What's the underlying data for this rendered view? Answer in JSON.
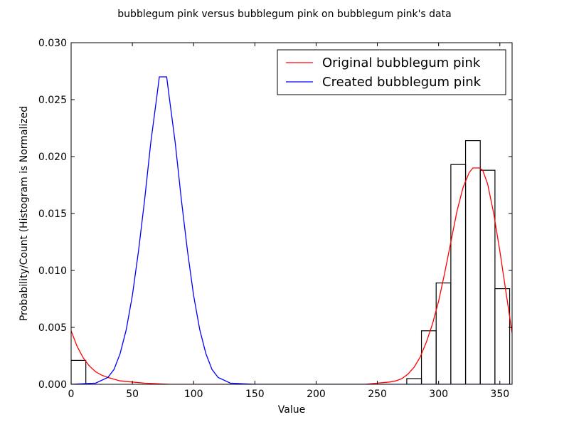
{
  "chart_data": {
    "type": "histogram+line",
    "title": "bubblegum pink versus bubblegum pink on bubblegum pink's data",
    "xlabel": "Value",
    "ylabel": "Probability/Count (Histogram is Normalized",
    "xlim": [
      0,
      360
    ],
    "ylim": [
      0,
      0.03
    ],
    "x_ticks": [
      0,
      50,
      100,
      150,
      200,
      250,
      300,
      350
    ],
    "x_tick_labels": [
      "0",
      "50",
      "100",
      "150",
      "200",
      "250",
      "300",
      "350"
    ],
    "y_ticks": [
      0,
      0.005,
      0.01,
      0.015,
      0.02,
      0.025,
      0.03
    ],
    "y_tick_labels": [
      "0.000",
      "0.005",
      "0.010",
      "0.015",
      "0.020",
      "0.025",
      "0.030"
    ],
    "grid": false,
    "legend_position": "top-right",
    "histogram": {
      "edge_color": "#000000",
      "fill": "none",
      "bins": [
        {
          "x0": 0,
          "x1": 12,
          "value": 0.0021
        },
        {
          "x0": 274,
          "x1": 286,
          "value": 0.0005
        },
        {
          "x0": 286,
          "x1": 298,
          "value": 0.0047
        },
        {
          "x0": 298,
          "x1": 310,
          "value": 0.0089
        },
        {
          "x0": 310,
          "x1": 322,
          "value": 0.0193
        },
        {
          "x0": 322,
          "x1": 334,
          "value": 0.0214
        },
        {
          "x0": 334,
          "x1": 346,
          "value": 0.0188
        },
        {
          "x0": 346,
          "x1": 358,
          "value": 0.0084
        }
      ]
    },
    "series": [
      {
        "name": "Original bubblegum pink",
        "color": "#ff0000",
        "x": [
          0,
          5,
          10,
          15,
          20,
          25,
          30,
          40,
          50,
          60,
          80,
          100,
          150,
          200,
          240,
          250,
          260,
          265,
          270,
          275,
          280,
          285,
          290,
          295,
          300,
          305,
          310,
          315,
          320,
          325,
          328,
          330,
          333,
          336,
          340,
          345,
          350,
          355,
          360
        ],
        "y": [
          0.0047,
          0.0033,
          0.0023,
          0.0016,
          0.0011,
          0.0008,
          0.0006,
          0.0003,
          0.0002,
          0.0001,
          0.0,
          0.0,
          0.0,
          0.0,
          0.0,
          0.0001,
          0.0002,
          0.0003,
          0.0005,
          0.0009,
          0.0015,
          0.0024,
          0.0037,
          0.0053,
          0.0073,
          0.0098,
          0.0125,
          0.0152,
          0.0173,
          0.0186,
          0.019,
          0.019,
          0.019,
          0.0188,
          0.0176,
          0.015,
          0.0117,
          0.0081,
          0.0045
        ]
      },
      {
        "name": "Created bubblegum pink",
        "color": "#0000ff",
        "x": [
          0,
          20,
          30,
          35,
          40,
          45,
          50,
          55,
          60,
          65,
          70,
          72,
          75,
          78,
          80,
          85,
          90,
          95,
          100,
          105,
          110,
          115,
          120,
          130,
          150,
          200,
          250,
          300,
          360
        ],
        "y": [
          0.0,
          0.0001,
          0.0006,
          0.0013,
          0.0027,
          0.0048,
          0.0078,
          0.0117,
          0.0162,
          0.0212,
          0.0253,
          0.027,
          0.027,
          0.027,
          0.0253,
          0.0212,
          0.0162,
          0.0117,
          0.0078,
          0.0048,
          0.0027,
          0.0013,
          0.0006,
          0.0001,
          0.0,
          0.0,
          0.0,
          0.0,
          0.0
        ]
      }
    ]
  }
}
